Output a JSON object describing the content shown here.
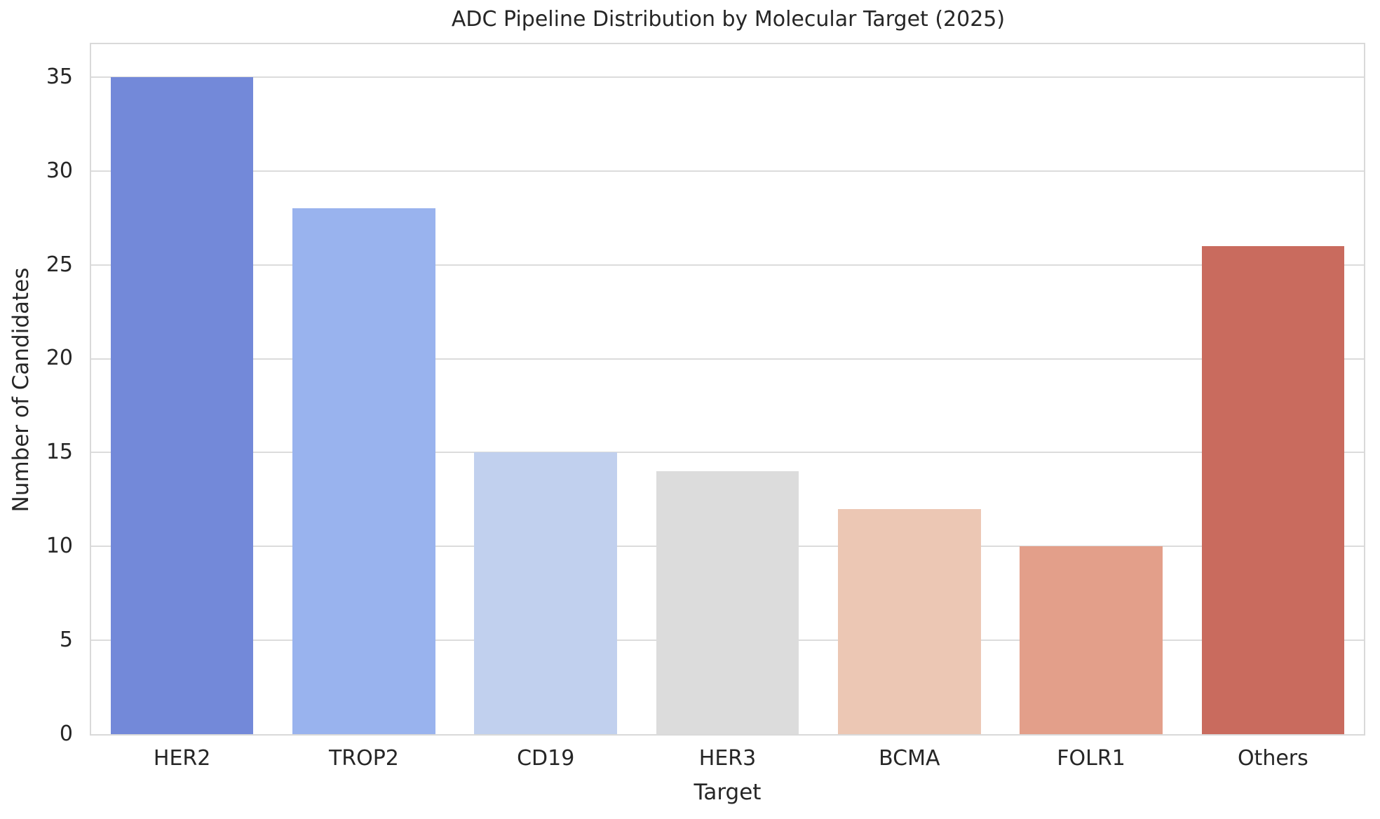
{
  "chart_data": {
    "type": "bar",
    "title": "ADC Pipeline Distribution by Molecular Target (2025)",
    "xlabel": "Target",
    "ylabel": "Number of Candidates",
    "categories": [
      "HER2",
      "TROP2",
      "CD19",
      "HER3",
      "BCMA",
      "FOLR1",
      "Others"
    ],
    "values": [
      35,
      28,
      15,
      14,
      12,
      10,
      26
    ],
    "bar_colors": [
      "#7389d9",
      "#99b3ee",
      "#c1d0ee",
      "#dcdcdc",
      "#ecc7b4",
      "#e39f8a",
      "#c96b5e"
    ],
    "yticks": [
      0,
      5,
      10,
      15,
      20,
      25,
      30,
      35
    ],
    "ylim": [
      0,
      36.75
    ],
    "bar_width_fraction": 0.785,
    "grid": true,
    "legend_position": "none",
    "colors": {
      "grid": "#dcdcdc",
      "spine": "#d9d9d9",
      "text": "#262626",
      "background": "#ffffff"
    }
  }
}
